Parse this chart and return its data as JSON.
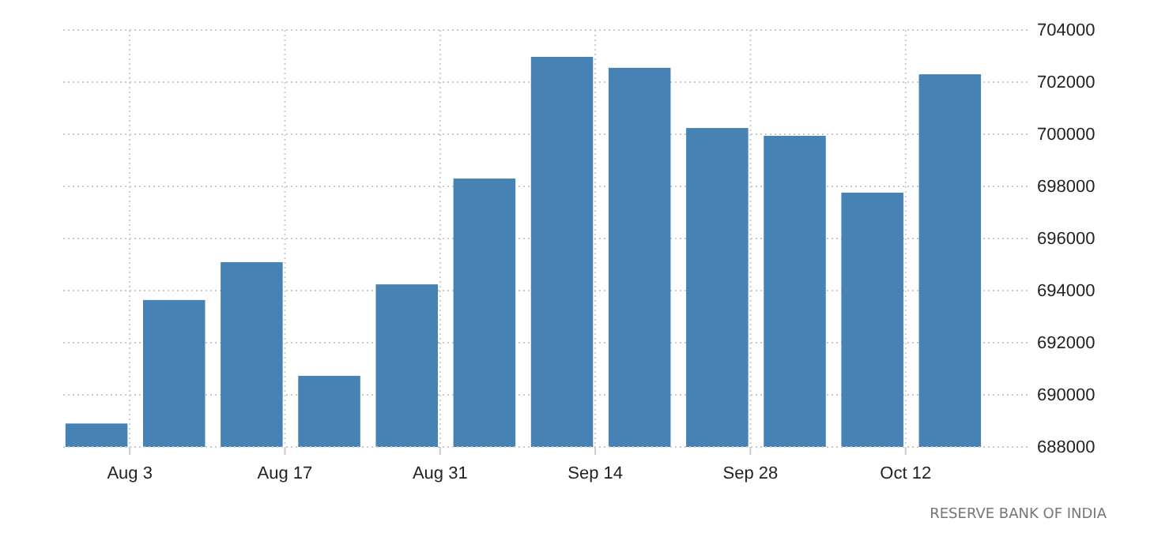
{
  "chart_data": {
    "type": "bar",
    "x": [
      "--07-31",
      "--08-07",
      "--08-14",
      "--08-21",
      "--08-28",
      "--09-04",
      "--09-11",
      "--09-18",
      "--09-25",
      "--10-02",
      "--10-09",
      "--10-16"
    ],
    "values": [
      688900,
      693640,
      695090,
      690730,
      694240,
      698300,
      702970,
      702550,
      700240,
      699940,
      697760,
      702300
    ],
    "color": "#4682b4",
    "xlim": [
      "--07-28",
      "--10-23"
    ],
    "xticks": [
      {
        "value": "--08-03",
        "label": "Aug 3"
      },
      {
        "value": "--08-17",
        "label": "Aug 17"
      },
      {
        "value": "--08-31",
        "label": "Aug 31"
      },
      {
        "value": "--09-14",
        "label": "Sep 14"
      },
      {
        "value": "--09-28",
        "label": "Sep 28"
      },
      {
        "value": "--10-12",
        "label": "Oct 12"
      }
    ],
    "ylim": [
      688000,
      704000
    ],
    "yticks": [
      688000,
      690000,
      692000,
      694000,
      696000,
      698000,
      700000,
      702000,
      704000
    ],
    "grid": true,
    "annotations": [
      "RESERVE BANK OF INDIA"
    ]
  }
}
